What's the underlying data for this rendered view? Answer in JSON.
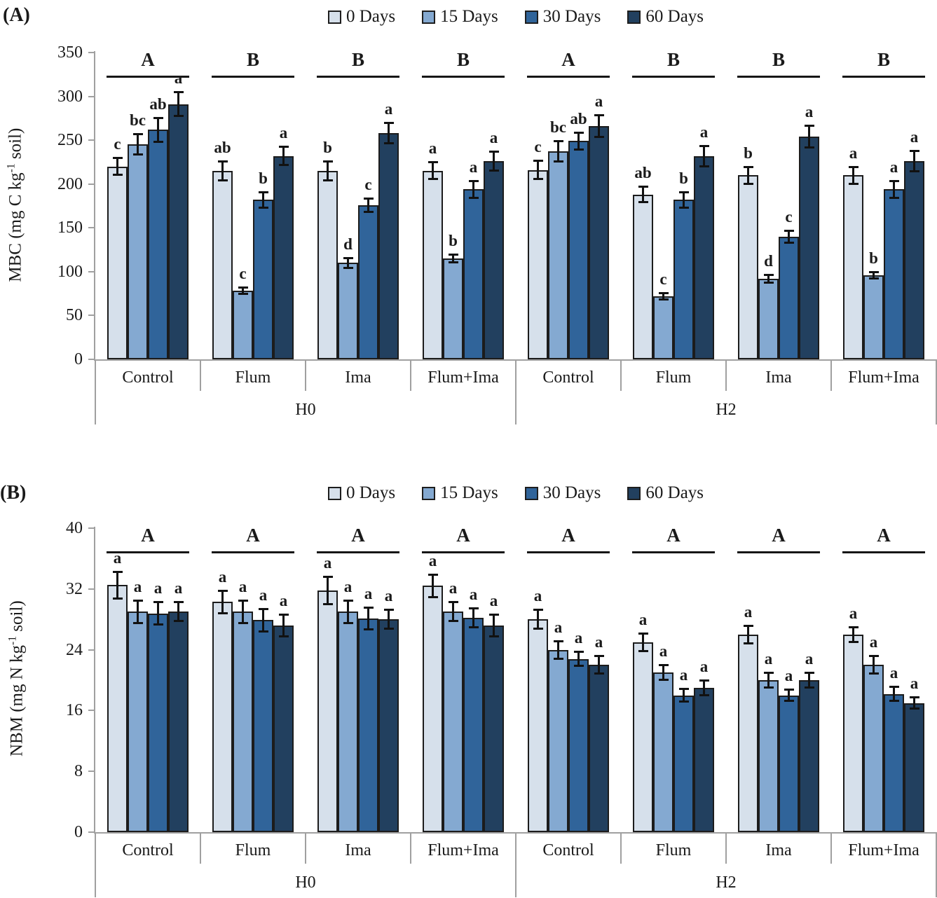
{
  "colors": {
    "series": [
      "#d6e0eb",
      "#84a9d1",
      "#30649a",
      "#22405f"
    ],
    "bar_border": "#1c1c1c",
    "axis": "#a0a0a0",
    "text": "#1a1a1a"
  },
  "chart_data": [
    {
      "type": "bar",
      "panel_label": "(A)",
      "ylabel": {
        "pre": "MBC (mg C kg",
        "sup": "-1",
        "post": " soil)"
      },
      "ylim": [
        0,
        350
      ],
      "yticks": [
        0,
        50,
        100,
        150,
        200,
        250,
        300,
        350
      ],
      "grid": false,
      "legend_position": "top-center",
      "series_names": [
        "0 Days",
        "15 Days",
        "30 Days",
        "60 Days"
      ],
      "blocks": [
        {
          "label": "H0"
        },
        {
          "label": "H2"
        }
      ],
      "groups": [
        {
          "block": "H0",
          "category": "Control",
          "group_sig": "A",
          "values": [
            220,
            245,
            262,
            291
          ],
          "errors": [
            10,
            12,
            14,
            14
          ],
          "letters": [
            "c",
            "bc",
            "ab",
            "a"
          ]
        },
        {
          "block": "H0",
          "category": "Flum",
          "group_sig": "B",
          "values": [
            215,
            78,
            182,
            232
          ],
          "errors": [
            11,
            4,
            9,
            11
          ],
          "letters": [
            "ab",
            "c",
            "b",
            "a"
          ]
        },
        {
          "block": "H0",
          "category": "Ima",
          "group_sig": "B",
          "values": [
            215,
            110,
            176,
            258
          ],
          "errors": [
            11,
            6,
            8,
            12
          ],
          "letters": [
            "b",
            "d",
            "c",
            "a"
          ]
        },
        {
          "block": "H0",
          "category": "Flum+Ima",
          "group_sig": "B",
          "values": [
            215,
            115,
            194,
            226
          ],
          "errors": [
            10,
            5,
            10,
            11
          ],
          "letters": [
            "a",
            "b",
            "a",
            "a"
          ]
        },
        {
          "block": "H2",
          "category": "Control",
          "group_sig": "A",
          "values": [
            216,
            237,
            249,
            266
          ],
          "errors": [
            11,
            12,
            10,
            13
          ],
          "letters": [
            "c",
            "bc",
            "ab",
            "a"
          ]
        },
        {
          "block": "H2",
          "category": "Flum",
          "group_sig": "B",
          "values": [
            188,
            72,
            182,
            232
          ],
          "errors": [
            9,
            4,
            9,
            12
          ],
          "letters": [
            "ab",
            "c",
            "b",
            "a"
          ]
        },
        {
          "block": "H2",
          "category": "Ima",
          "group_sig": "B",
          "values": [
            210,
            92,
            140,
            254
          ],
          "errors": [
            10,
            5,
            7,
            13
          ],
          "letters": [
            "b",
            "d",
            "c",
            "a"
          ]
        },
        {
          "block": "H2",
          "category": "Flum+Ima",
          "group_sig": "B",
          "values": [
            210,
            96,
            194,
            226
          ],
          "errors": [
            10,
            4,
            10,
            12
          ],
          "letters": [
            "a",
            "b",
            "a",
            "a"
          ]
        }
      ]
    },
    {
      "type": "bar",
      "panel_label": "(B)",
      "ylabel": {
        "pre": "NBM (mg N kg",
        "sup": "-1",
        "post": " soil)"
      },
      "ylim": [
        0,
        40
      ],
      "yticks": [
        0,
        8,
        16,
        24,
        32,
        40
      ],
      "grid": false,
      "legend_position": "top-center",
      "series_names": [
        "0 Days",
        "15 Days",
        "30 Days",
        "60 Days"
      ],
      "blocks": [
        {
          "label": "H0"
        },
        {
          "label": "H2"
        }
      ],
      "groups": [
        {
          "block": "H0",
          "category": "Control",
          "group_sig": "A",
          "values": [
            32.5,
            29,
            28.8,
            29
          ],
          "errors": [
            1.8,
            1.5,
            1.5,
            1.3
          ],
          "letters": [
            "a",
            "a",
            "a",
            "a"
          ]
        },
        {
          "block": "H0",
          "category": "Flum",
          "group_sig": "A",
          "values": [
            30.3,
            29,
            27.9,
            27.2
          ],
          "errors": [
            1.5,
            1.5,
            1.5,
            1.5
          ],
          "letters": [
            "a",
            "a",
            "a",
            "a"
          ]
        },
        {
          "block": "H0",
          "category": "Ima",
          "group_sig": "A",
          "values": [
            31.8,
            29,
            28.1,
            28
          ],
          "errors": [
            1.8,
            1.5,
            1.5,
            1.3
          ],
          "letters": [
            "a",
            "a",
            "a",
            "a"
          ]
        },
        {
          "block": "H0",
          "category": "Flum+Ima",
          "group_sig": "A",
          "values": [
            32.4,
            29,
            28.2,
            27.2
          ],
          "errors": [
            1.5,
            1.3,
            1.3,
            1.5
          ],
          "letters": [
            "a",
            "a",
            "a",
            "a"
          ]
        },
        {
          "block": "H2",
          "category": "Control",
          "group_sig": "A",
          "values": [
            28,
            24,
            22.8,
            22
          ],
          "errors": [
            1.3,
            1.2,
            1.0,
            1.2
          ],
          "letters": [
            "a",
            "a",
            "a",
            "a"
          ]
        },
        {
          "block": "H2",
          "category": "Flum",
          "group_sig": "A",
          "values": [
            25,
            21,
            18,
            19
          ],
          "errors": [
            1.2,
            1.0,
            0.9,
            1.0
          ],
          "letters": [
            "a",
            "a",
            "a",
            "a"
          ]
        },
        {
          "block": "H2",
          "category": "Ima",
          "group_sig": "A",
          "values": [
            26,
            20,
            18,
            20
          ],
          "errors": [
            1.2,
            1.0,
            0.8,
            1.0
          ],
          "letters": [
            "a",
            "a",
            "a",
            "a"
          ]
        },
        {
          "block": "H2",
          "category": "Flum+Ima",
          "group_sig": "A",
          "values": [
            26,
            22,
            18.2,
            17
          ],
          "errors": [
            1.0,
            1.2,
            1.0,
            0.8
          ],
          "letters": [
            "a",
            "a",
            "a",
            "a"
          ]
        }
      ]
    }
  ]
}
